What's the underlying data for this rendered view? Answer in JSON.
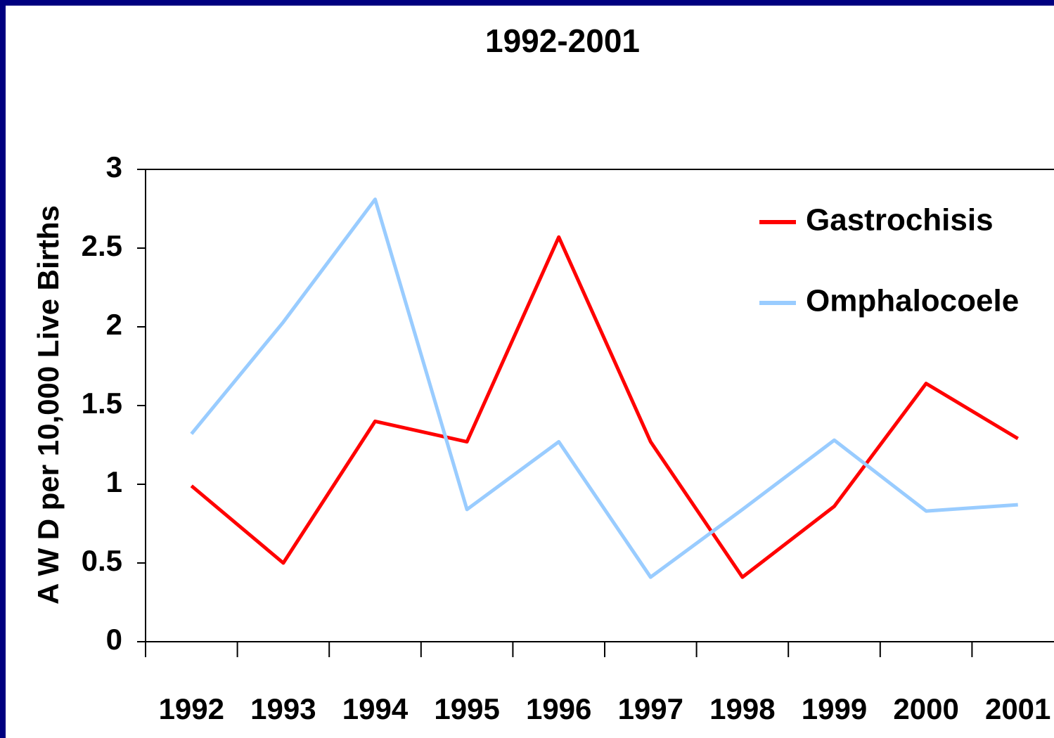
{
  "chart_data": {
    "type": "line",
    "title": "1992-2001",
    "y_label": "A W D per 10,000 Live Births",
    "categories": [
      "1992",
      "1993",
      "1994",
      "1995",
      "1996",
      "1997",
      "1998",
      "1999",
      "2000",
      "2001"
    ],
    "series": [
      {
        "name": "Gastrochisis",
        "color": "#ff0000",
        "values": [
          0.99,
          0.5,
          1.4,
          1.27,
          2.57,
          1.27,
          0.41,
          0.86,
          1.64,
          1.29
        ]
      },
      {
        "name": "Omphalocoele",
        "color": "#99ccff",
        "values": [
          1.32,
          2.03,
          2.81,
          0.84,
          1.27,
          0.41,
          0.84,
          1.28,
          0.83,
          0.87
        ]
      }
    ],
    "ylim": [
      0,
      3
    ],
    "yticks": [
      0,
      0.5,
      1,
      1.5,
      2,
      2.5,
      3
    ],
    "grid": false,
    "legend": "upper right"
  }
}
